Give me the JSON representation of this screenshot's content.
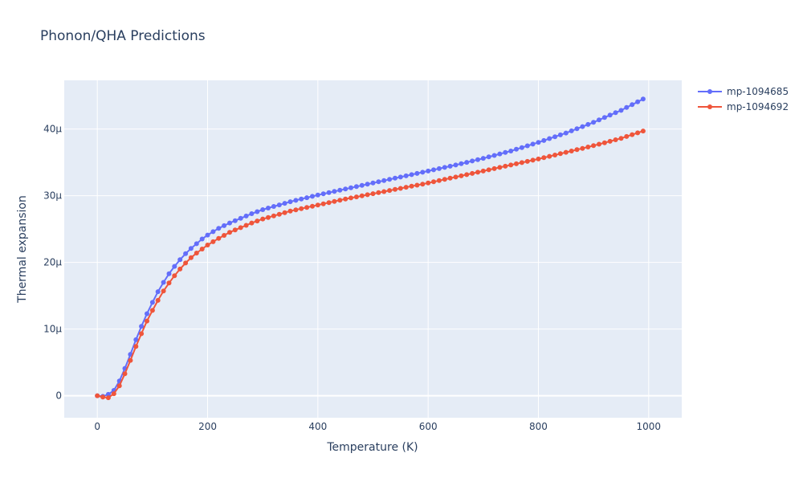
{
  "chart_data": {
    "type": "line",
    "title": "Phonon/QHA Predictions",
    "xlabel": "Temperature (K)",
    "ylabel": "Thermal expansion",
    "xlim": [
      -60,
      1060
    ],
    "ylim": [
      -3.3e-06,
      4.73e-05
    ],
    "x_ticks": [
      0,
      200,
      400,
      600,
      800,
      1000
    ],
    "x_tick_labels": [
      "0",
      "200",
      "400",
      "600",
      "800",
      "1000"
    ],
    "y_ticks": [
      0,
      1e-05,
      2e-05,
      3e-05,
      4e-05
    ],
    "y_tick_labels": [
      "0",
      "10μ",
      "20μ",
      "30μ",
      "40μ"
    ],
    "grid": true,
    "legend_position": "top-right",
    "x": [
      0,
      10,
      20,
      30,
      40,
      50,
      60,
      70,
      80,
      90,
      100,
      110,
      120,
      130,
      140,
      150,
      160,
      170,
      180,
      190,
      200,
      210,
      220,
      230,
      240,
      250,
      260,
      270,
      280,
      290,
      300,
      310,
      320,
      330,
      340,
      350,
      360,
      370,
      380,
      390,
      400,
      410,
      420,
      430,
      440,
      450,
      460,
      470,
      480,
      490,
      500,
      510,
      520,
      530,
      540,
      550,
      560,
      570,
      580,
      590,
      600,
      610,
      620,
      630,
      640,
      650,
      660,
      670,
      680,
      690,
      700,
      710,
      720,
      730,
      740,
      750,
      760,
      770,
      780,
      790,
      800,
      810,
      820,
      830,
      840,
      850,
      860,
      870,
      880,
      890,
      900,
      910,
      920,
      930,
      940,
      950,
      960,
      970,
      980,
      990
    ],
    "series": [
      {
        "name": "mp-1094685",
        "color": "#636efa",
        "key_x": [
          0,
          10,
          20,
          30,
          40,
          50,
          60,
          70,
          80,
          90,
          100,
          110,
          120,
          130,
          140,
          150,
          160,
          170,
          180,
          190,
          200,
          220,
          240,
          260,
          280,
          300,
          350,
          400,
          450,
          500,
          550,
          600,
          650,
          700,
          750,
          800,
          850,
          900,
          950,
          990
        ],
        "key_y": [
          0,
          -1e-07,
          2e-07,
          8e-07,
          2.2e-06,
          4.1e-06,
          6.2e-06,
          8.4e-06,
          1.04e-05,
          1.23e-05,
          1.4e-05,
          1.56e-05,
          1.7e-05,
          1.83e-05,
          1.94e-05,
          2.04e-05,
          2.13e-05,
          2.21e-05,
          2.28e-05,
          2.35e-05,
          2.41e-05,
          2.51e-05,
          2.59e-05,
          2.66e-05,
          2.73e-05,
          2.79e-05,
          2.91e-05,
          3.01e-05,
          3.1e-05,
          3.19e-05,
          3.28e-05,
          3.37e-05,
          3.46e-05,
          3.56e-05,
          3.67e-05,
          3.8e-05,
          3.94e-05,
          4.1e-05,
          4.28e-05,
          4.45e-05
        ]
      },
      {
        "name": "mp-1094692",
        "color": "#ef553b",
        "key_x": [
          0,
          10,
          20,
          30,
          40,
          50,
          60,
          70,
          80,
          90,
          100,
          110,
          120,
          130,
          140,
          150,
          160,
          170,
          180,
          190,
          200,
          220,
          240,
          260,
          280,
          300,
          350,
          400,
          450,
          500,
          550,
          600,
          650,
          700,
          750,
          800,
          850,
          900,
          950,
          990
        ],
        "key_y": [
          0,
          -2e-07,
          -3e-07,
          3e-07,
          1.5e-06,
          3.3e-06,
          5.3e-06,
          7.4e-06,
          9.3e-06,
          1.12e-05,
          1.28e-05,
          1.43e-05,
          1.57e-05,
          1.69e-05,
          1.8e-05,
          1.9e-05,
          1.99e-05,
          2.07e-05,
          2.14e-05,
          2.2e-05,
          2.26e-05,
          2.36e-05,
          2.45e-05,
          2.52e-05,
          2.59e-05,
          2.65e-05,
          2.77e-05,
          2.86e-05,
          2.95e-05,
          3.03e-05,
          3.11e-05,
          3.19e-05,
          3.28e-05,
          3.37e-05,
          3.46e-05,
          3.55e-05,
          3.65e-05,
          3.75e-05,
          3.86e-05,
          3.97e-05
        ]
      }
    ]
  }
}
